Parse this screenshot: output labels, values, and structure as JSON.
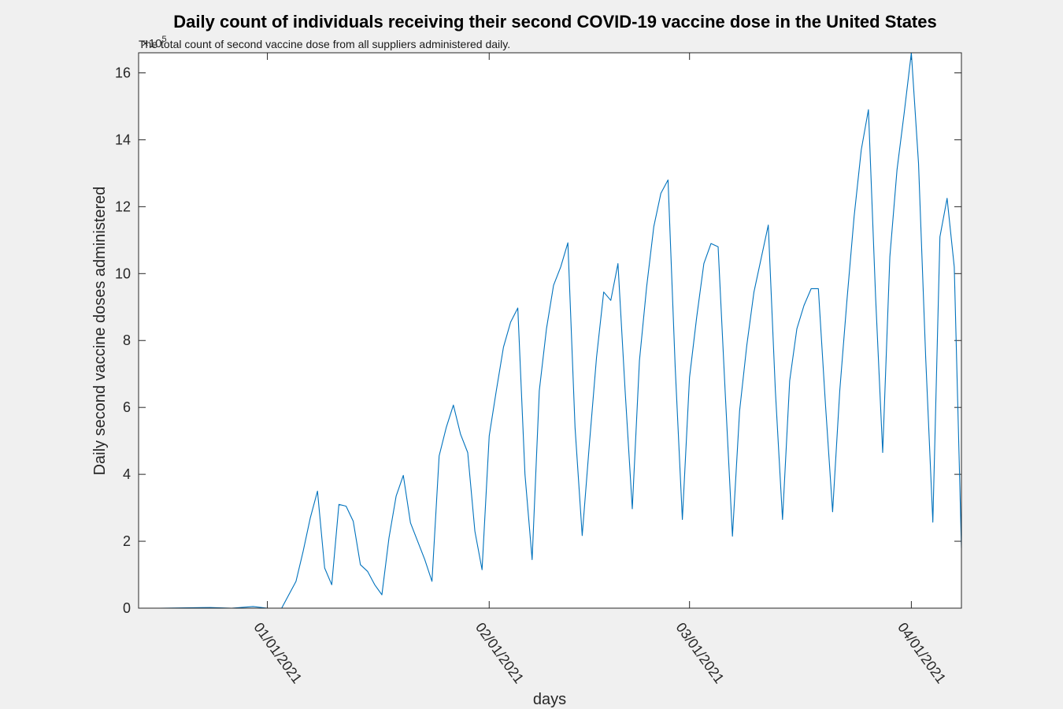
{
  "chart_data": {
    "type": "line",
    "title": "Daily count of individuals receiving their second COVID-19 vaccine dose in the United States",
    "subtitle": "The total count of second vaccine dose from all suppliers administered daily.",
    "xlabel": "days",
    "ylabel": "Daily second vaccine doses administered",
    "y_exponent_label": "×10",
    "y_exponent_power": "5",
    "y_multiplier": 100000,
    "xlim": [
      "2020-12-14",
      "2021-04-08"
    ],
    "ylim": [
      0,
      16.6
    ],
    "yticks": [
      0,
      2,
      4,
      6,
      8,
      10,
      12,
      14,
      16
    ],
    "xticks": [
      {
        "date": "2021-01-01",
        "label": "01/01/2021"
      },
      {
        "date": "2021-02-01",
        "label": "02/01/2021"
      },
      {
        "date": "2021-03-01",
        "label": "03/01/2021"
      },
      {
        "date": "2021-04-01",
        "label": "04/01/2021"
      }
    ],
    "grid": false,
    "line_color": "#0072bd",
    "series": [
      {
        "x": [
          "2020-12-14",
          "2020-12-17",
          "2020-12-24",
          "2020-12-27",
          "2020-12-30",
          "2021-01-01",
          "2021-01-03",
          "2021-01-05",
          "2021-01-06",
          "2021-01-07",
          "2021-01-08",
          "2021-01-09",
          "2021-01-10",
          "2021-01-11",
          "2021-01-12",
          "2021-01-13",
          "2021-01-14",
          "2021-01-15",
          "2021-01-16",
          "2021-01-17",
          "2021-01-18",
          "2021-01-19",
          "2021-01-20",
          "2021-01-21",
          "2021-01-22",
          "2021-01-23",
          "2021-01-24",
          "2021-01-25",
          "2021-01-26",
          "2021-01-27",
          "2021-01-28",
          "2021-01-29",
          "2021-01-30",
          "2021-01-31",
          "2021-02-01",
          "2021-02-02",
          "2021-02-03",
          "2021-02-04",
          "2021-02-05",
          "2021-02-06",
          "2021-02-07",
          "2021-02-08",
          "2021-02-09",
          "2021-02-10",
          "2021-02-11",
          "2021-02-12",
          "2021-02-13",
          "2021-02-14",
          "2021-02-15",
          "2021-02-16",
          "2021-02-17",
          "2021-02-18",
          "2021-02-19",
          "2021-02-20",
          "2021-02-21",
          "2021-02-22",
          "2021-02-23",
          "2021-02-24",
          "2021-02-25",
          "2021-02-26",
          "2021-02-27",
          "2021-02-28",
          "2021-03-01",
          "2021-03-02",
          "2021-03-03",
          "2021-03-04",
          "2021-03-05",
          "2021-03-06",
          "2021-03-07",
          "2021-03-08",
          "2021-03-09",
          "2021-03-10",
          "2021-03-11",
          "2021-03-12",
          "2021-03-13",
          "2021-03-14",
          "2021-03-15",
          "2021-03-16",
          "2021-03-17",
          "2021-03-18",
          "2021-03-19",
          "2021-03-20",
          "2021-03-21",
          "2021-03-22",
          "2021-03-23",
          "2021-03-24",
          "2021-03-25",
          "2021-03-26",
          "2021-03-27",
          "2021-03-28",
          "2021-03-29",
          "2021-03-30",
          "2021-03-31",
          "2021-04-01",
          "2021-04-02",
          "2021-04-03",
          "2021-04-04",
          "2021-04-05",
          "2021-04-06",
          "2021-04-07",
          "2021-04-08"
        ],
        "y": [
          0,
          0,
          0.02,
          0,
          0.05,
          0,
          0,
          0.8,
          1.7,
          2.7,
          3.5,
          1.2,
          0.7,
          3.1,
          3.05,
          2.6,
          1.3,
          1.1,
          0.7,
          0.4,
          2.1,
          3.35,
          3.97,
          2.55,
          2,
          1.45,
          0.8,
          4.55,
          5.4,
          6.07,
          5.2,
          4.65,
          2.3,
          1.15,
          5.15,
          6.5,
          7.8,
          8.55,
          8.97,
          4,
          1.45,
          6.5,
          8.35,
          9.65,
          10.2,
          10.92,
          5.4,
          2.17,
          4.9,
          7.5,
          9.45,
          9.2,
          10.3,
          6.5,
          2.97,
          7.4,
          9.6,
          11.4,
          12.4,
          12.8,
          7.2,
          2.65,
          6.9,
          8.7,
          10.3,
          10.9,
          10.8,
          6.4,
          2.15,
          5.9,
          7.85,
          9.45,
          10.45,
          11.45,
          6.5,
          2.65,
          6.8,
          8.35,
          9.05,
          9.55,
          9.55,
          6.1,
          2.88,
          6.5,
          9.2,
          11.7,
          13.7,
          14.9,
          9.3,
          4.65,
          10.5,
          13.1,
          14.8,
          16.6,
          13.3,
          7.5,
          2.57,
          11.1,
          12.25,
          10.2,
          1.8
        ]
      }
    ]
  }
}
